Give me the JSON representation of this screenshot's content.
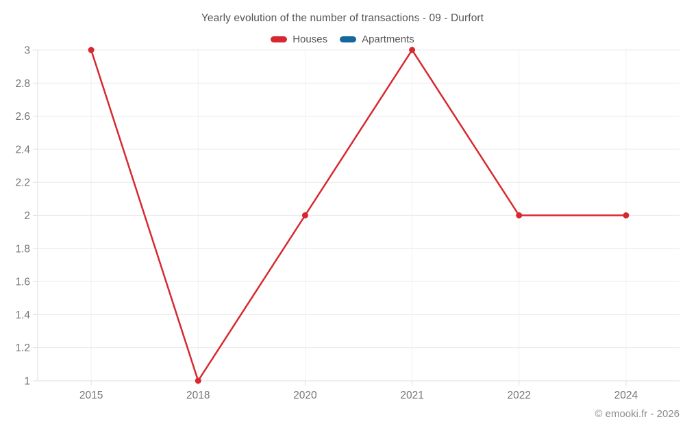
{
  "header": {
    "title": "Yearly evolution of the number of transactions - 09 - Durfort"
  },
  "chart_data": {
    "type": "line",
    "title": "Yearly evolution of the number of transactions - 09 - Durfort",
    "categories": [
      "2015",
      "2018",
      "2020",
      "2021",
      "2022",
      "2024"
    ],
    "series": [
      {
        "name": "Houses",
        "color": "#d7282f",
        "values": [
          3,
          1,
          2,
          3,
          2,
          2
        ]
      },
      {
        "name": "Apartments",
        "color": "#15689d",
        "values": []
      }
    ],
    "xlabel": "",
    "ylabel": "",
    "ylim": [
      1,
      3
    ],
    "ytick_step": 0.2,
    "yticks": [
      1,
      1.2,
      1.4,
      1.6,
      1.8,
      2,
      2.2,
      2.4,
      2.6,
      2.8,
      3
    ],
    "grid": true,
    "legend_position": "top",
    "marker": "circle"
  },
  "footer": {
    "copyright": "© emooki.fr - 2026"
  },
  "colors": {
    "houses": "#d7282f",
    "apartments": "#15689d"
  }
}
